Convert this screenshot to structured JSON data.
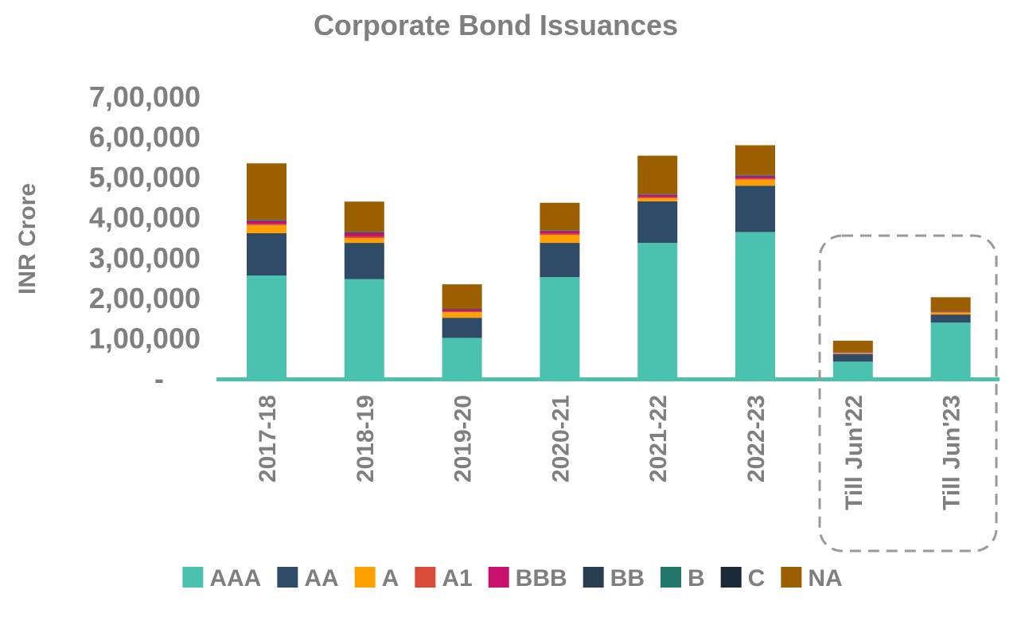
{
  "chart_data": {
    "type": "bar",
    "stacked": true,
    "title": "Corporate Bond Issuances",
    "ylabel": "INR Crore",
    "ylim": [
      0,
      700000
    ],
    "yticks": [
      {
        "value": 0,
        "label": "-"
      },
      {
        "value": 100000,
        "label": "1,00,000"
      },
      {
        "value": 200000,
        "label": "2,00,000"
      },
      {
        "value": 300000,
        "label": "3,00,000"
      },
      {
        "value": 400000,
        "label": "4,00,000"
      },
      {
        "value": 500000,
        "label": "5,00,000"
      },
      {
        "value": 600000,
        "label": "6,00,000"
      },
      {
        "value": 700000,
        "label": "7,00,000"
      }
    ],
    "categories": [
      "2017-18",
      "2018-19",
      "2019-20",
      "2020-21",
      "2021-22",
      "2022-23",
      "Till Jun'22",
      "Till Jun'23"
    ],
    "highlight_categories": [
      "Till Jun'22",
      "Till Jun'23"
    ],
    "legend_position": "bottom",
    "series": [
      {
        "name": "AAA",
        "color": "#4bc1b0",
        "values": [
          257000,
          248000,
          102000,
          253000,
          338000,
          365000,
          43000,
          140000
        ]
      },
      {
        "name": "AA",
        "color": "#2f4b68",
        "values": [
          105000,
          90000,
          50000,
          85000,
          103000,
          115000,
          19000,
          20000
        ]
      },
      {
        "name": "A",
        "color": "#ff9f00",
        "values": [
          20000,
          12000,
          14000,
          20000,
          8000,
          15000,
          2000,
          5000
        ]
      },
      {
        "name": "A1",
        "color": "#d84b37",
        "values": [
          3000,
          4000,
          2000,
          3000,
          3000,
          3000,
          1000,
          1000
        ]
      },
      {
        "name": "BBB",
        "color": "#c8106e",
        "values": [
          7000,
          8000,
          4000,
          6000,
          5000,
          5000,
          1000,
          1000
        ]
      },
      {
        "name": "BB",
        "color": "#2a3e52",
        "values": [
          2000,
          2000,
          1000,
          1000,
          1000,
          2000,
          500,
          500
        ]
      },
      {
        "name": "B",
        "color": "#24776b",
        "values": [
          1000,
          1000,
          500,
          1000,
          1000,
          1000,
          300,
          300
        ]
      },
      {
        "name": "C",
        "color": "#1c2a38",
        "values": [
          500,
          500,
          500,
          500,
          500,
          500,
          200,
          200
        ]
      },
      {
        "name": "NA",
        "color": "#9c5f00",
        "values": [
          140000,
          75000,
          61000,
          68000,
          95000,
          74000,
          28000,
          35000
        ]
      }
    ]
  }
}
